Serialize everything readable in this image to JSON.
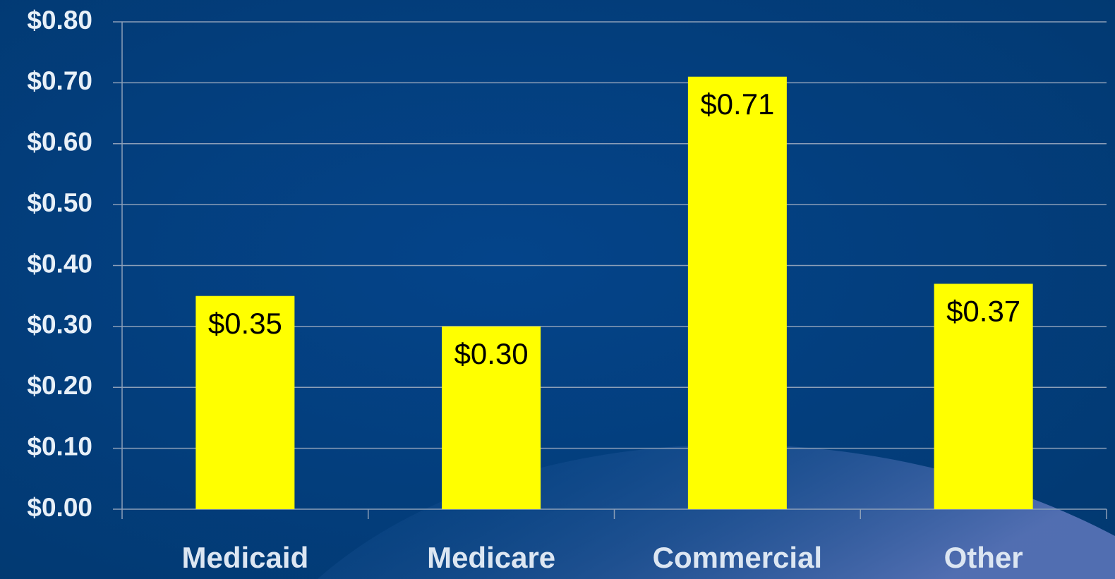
{
  "chart_data": {
    "type": "bar",
    "categories": [
      "Medicaid",
      "Medicare",
      "Commercial",
      "Other"
    ],
    "values": [
      0.35,
      0.3,
      0.71,
      0.37
    ],
    "value_labels": [
      "$0.35",
      "$0.30",
      "$0.71",
      "$0.37"
    ],
    "color": "#ffff00",
    "ylim": [
      0,
      0.8
    ],
    "yticks": [
      {
        "value": 0,
        "label": "$0.00"
      },
      {
        "value": 0.1,
        "label": "$0.10"
      },
      {
        "value": 0.2,
        "label": "$0.20"
      },
      {
        "value": 0.3,
        "label": "$0.30"
      },
      {
        "value": 0.4,
        "label": "$0.40"
      },
      {
        "value": 0.5,
        "label": "$0.50"
      },
      {
        "value": 0.6,
        "label": "$0.60"
      },
      {
        "value": 0.7,
        "label": "$0.70"
      },
      {
        "value": 0.8,
        "label": "$0.80"
      }
    ],
    "grid": true
  }
}
